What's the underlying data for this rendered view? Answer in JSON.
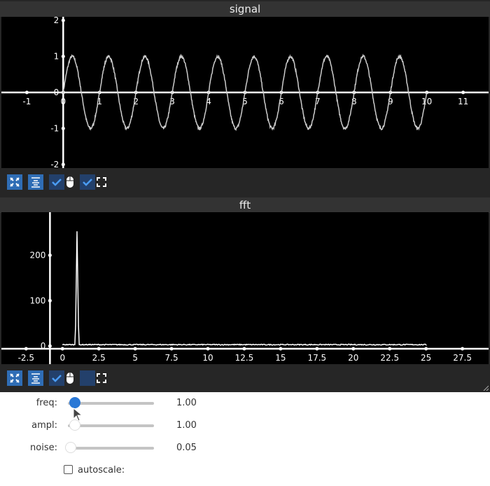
{
  "signal": {
    "title": "signal"
  },
  "fft": {
    "title": "fft"
  },
  "controls": {
    "freq": {
      "label": "freq:",
      "value": "1.00",
      "fraction": 0.03
    },
    "ampl": {
      "label": "ampl:",
      "value": "1.00",
      "fraction": 0.03
    },
    "noise": {
      "label": "noise:",
      "value": "0.05",
      "fraction": 0.0
    },
    "autoscale": {
      "label": "autoscale:",
      "checked": false
    }
  },
  "toolbar_icons": [
    "zoom-extents-icon",
    "auto-range-icon",
    "check-icon",
    "mouse-icon",
    "check-icon",
    "fullscreen-icon"
  ],
  "chart_data": [
    {
      "type": "line",
      "title": "signal",
      "xlim": [
        -1.7,
        11.7
      ],
      "ylim": [
        -2.1,
        2.1
      ],
      "xticks": [
        "-1",
        "0",
        "1",
        "2",
        "3",
        "4",
        "5",
        "6",
        "7",
        "8",
        "9",
        "10",
        "11"
      ],
      "yticks": [
        "-2",
        "-1",
        "0",
        "1",
        "2"
      ],
      "series": [
        {
          "function": "ampl*sin(2*pi*freq*x)+noise",
          "x_range": [
            0,
            10
          ],
          "freq": 1.0,
          "ampl": 1.0,
          "noise": 0.05
        }
      ],
      "line_color": "#cccccc",
      "grid": false
    },
    {
      "type": "line",
      "title": "fft",
      "xlim": [
        -4.2,
        29.3
      ],
      "ylim": [
        -40,
        295
      ],
      "xticks": [
        "-2.5",
        "0",
        "2.5",
        "5",
        "7.5",
        "10",
        "12.5",
        "15",
        "17.5",
        "20",
        "22.5",
        "25",
        "27.5"
      ],
      "yticks": [
        "0",
        "100",
        "200"
      ],
      "series": [
        {
          "x_range": [
            0,
            25
          ],
          "peak": {
            "x": 1.0,
            "y": 250
          },
          "baseline": 3
        }
      ],
      "line_color": "#ffffff",
      "grid": false
    }
  ]
}
